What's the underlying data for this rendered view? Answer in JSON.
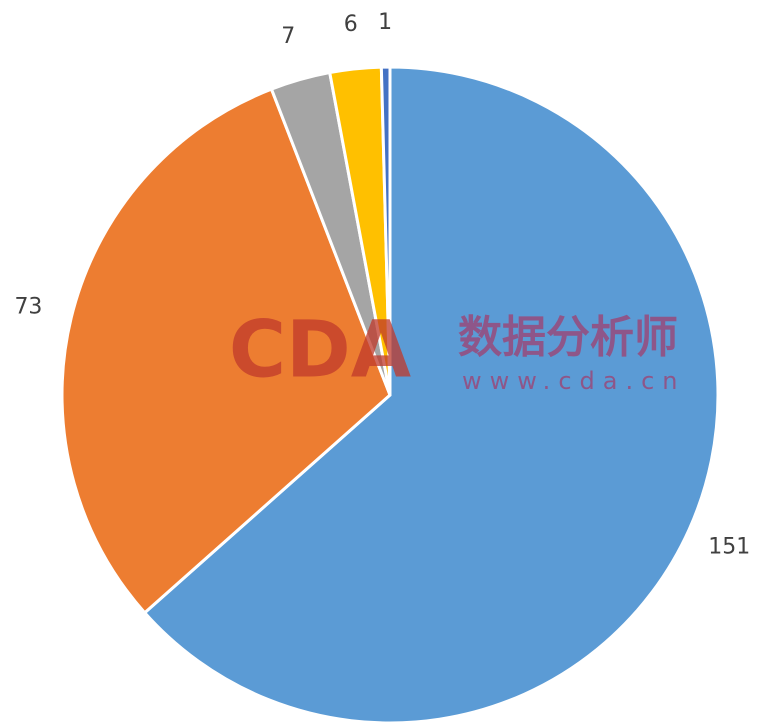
{
  "chart_data": {
    "type": "pie",
    "categories": [
      null,
      null,
      null,
      null,
      null
    ],
    "values": [
      151,
      73,
      7,
      6,
      1
    ],
    "colors": [
      "#5b9bd5",
      "#ed7d31",
      "#a5a5a5",
      "#ffc000",
      "#4472c4"
    ]
  },
  "watermark": {
    "logo": "CDA",
    "name": "数据分析师",
    "url": "www.cda.cn"
  }
}
